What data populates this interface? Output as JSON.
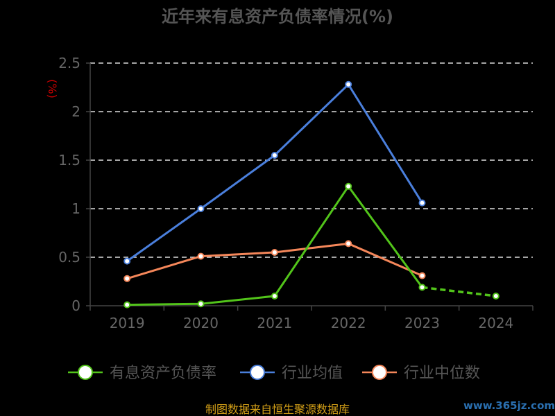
{
  "chart_data": {
    "type": "line",
    "title": "近年来有息资产负债率情况(%)",
    "ylabel": "(%)",
    "xlabel": "",
    "categories": [
      "2019",
      "2020",
      "2021",
      "2022",
      "2023",
      "2024"
    ],
    "ylim": [
      0,
      2.5
    ],
    "yticks": [
      0,
      0.5,
      1,
      1.5,
      2,
      2.5
    ],
    "ytick_labels": [
      "0",
      "0.5",
      "1",
      "1.5",
      "2",
      "2.5"
    ],
    "grid": true,
    "legend_position": "bottom",
    "series": [
      {
        "name": "有息资产负债率",
        "color": "#52c41a",
        "values": [
          0.01,
          0.02,
          0.1,
          1.23,
          0.19,
          0.1
        ]
      },
      {
        "name": "行业均值",
        "color": "#4a7fdc",
        "values": [
          0.46,
          1.0,
          1.55,
          2.28,
          1.06,
          null
        ]
      },
      {
        "name": "行业中位数",
        "color": "#f5875a",
        "values": [
          0.28,
          0.51,
          0.55,
          0.64,
          0.31,
          null
        ]
      }
    ]
  },
  "footer": {
    "source": "制图数据来自恒生聚源数据库",
    "watermark": "www.365jz.com"
  }
}
